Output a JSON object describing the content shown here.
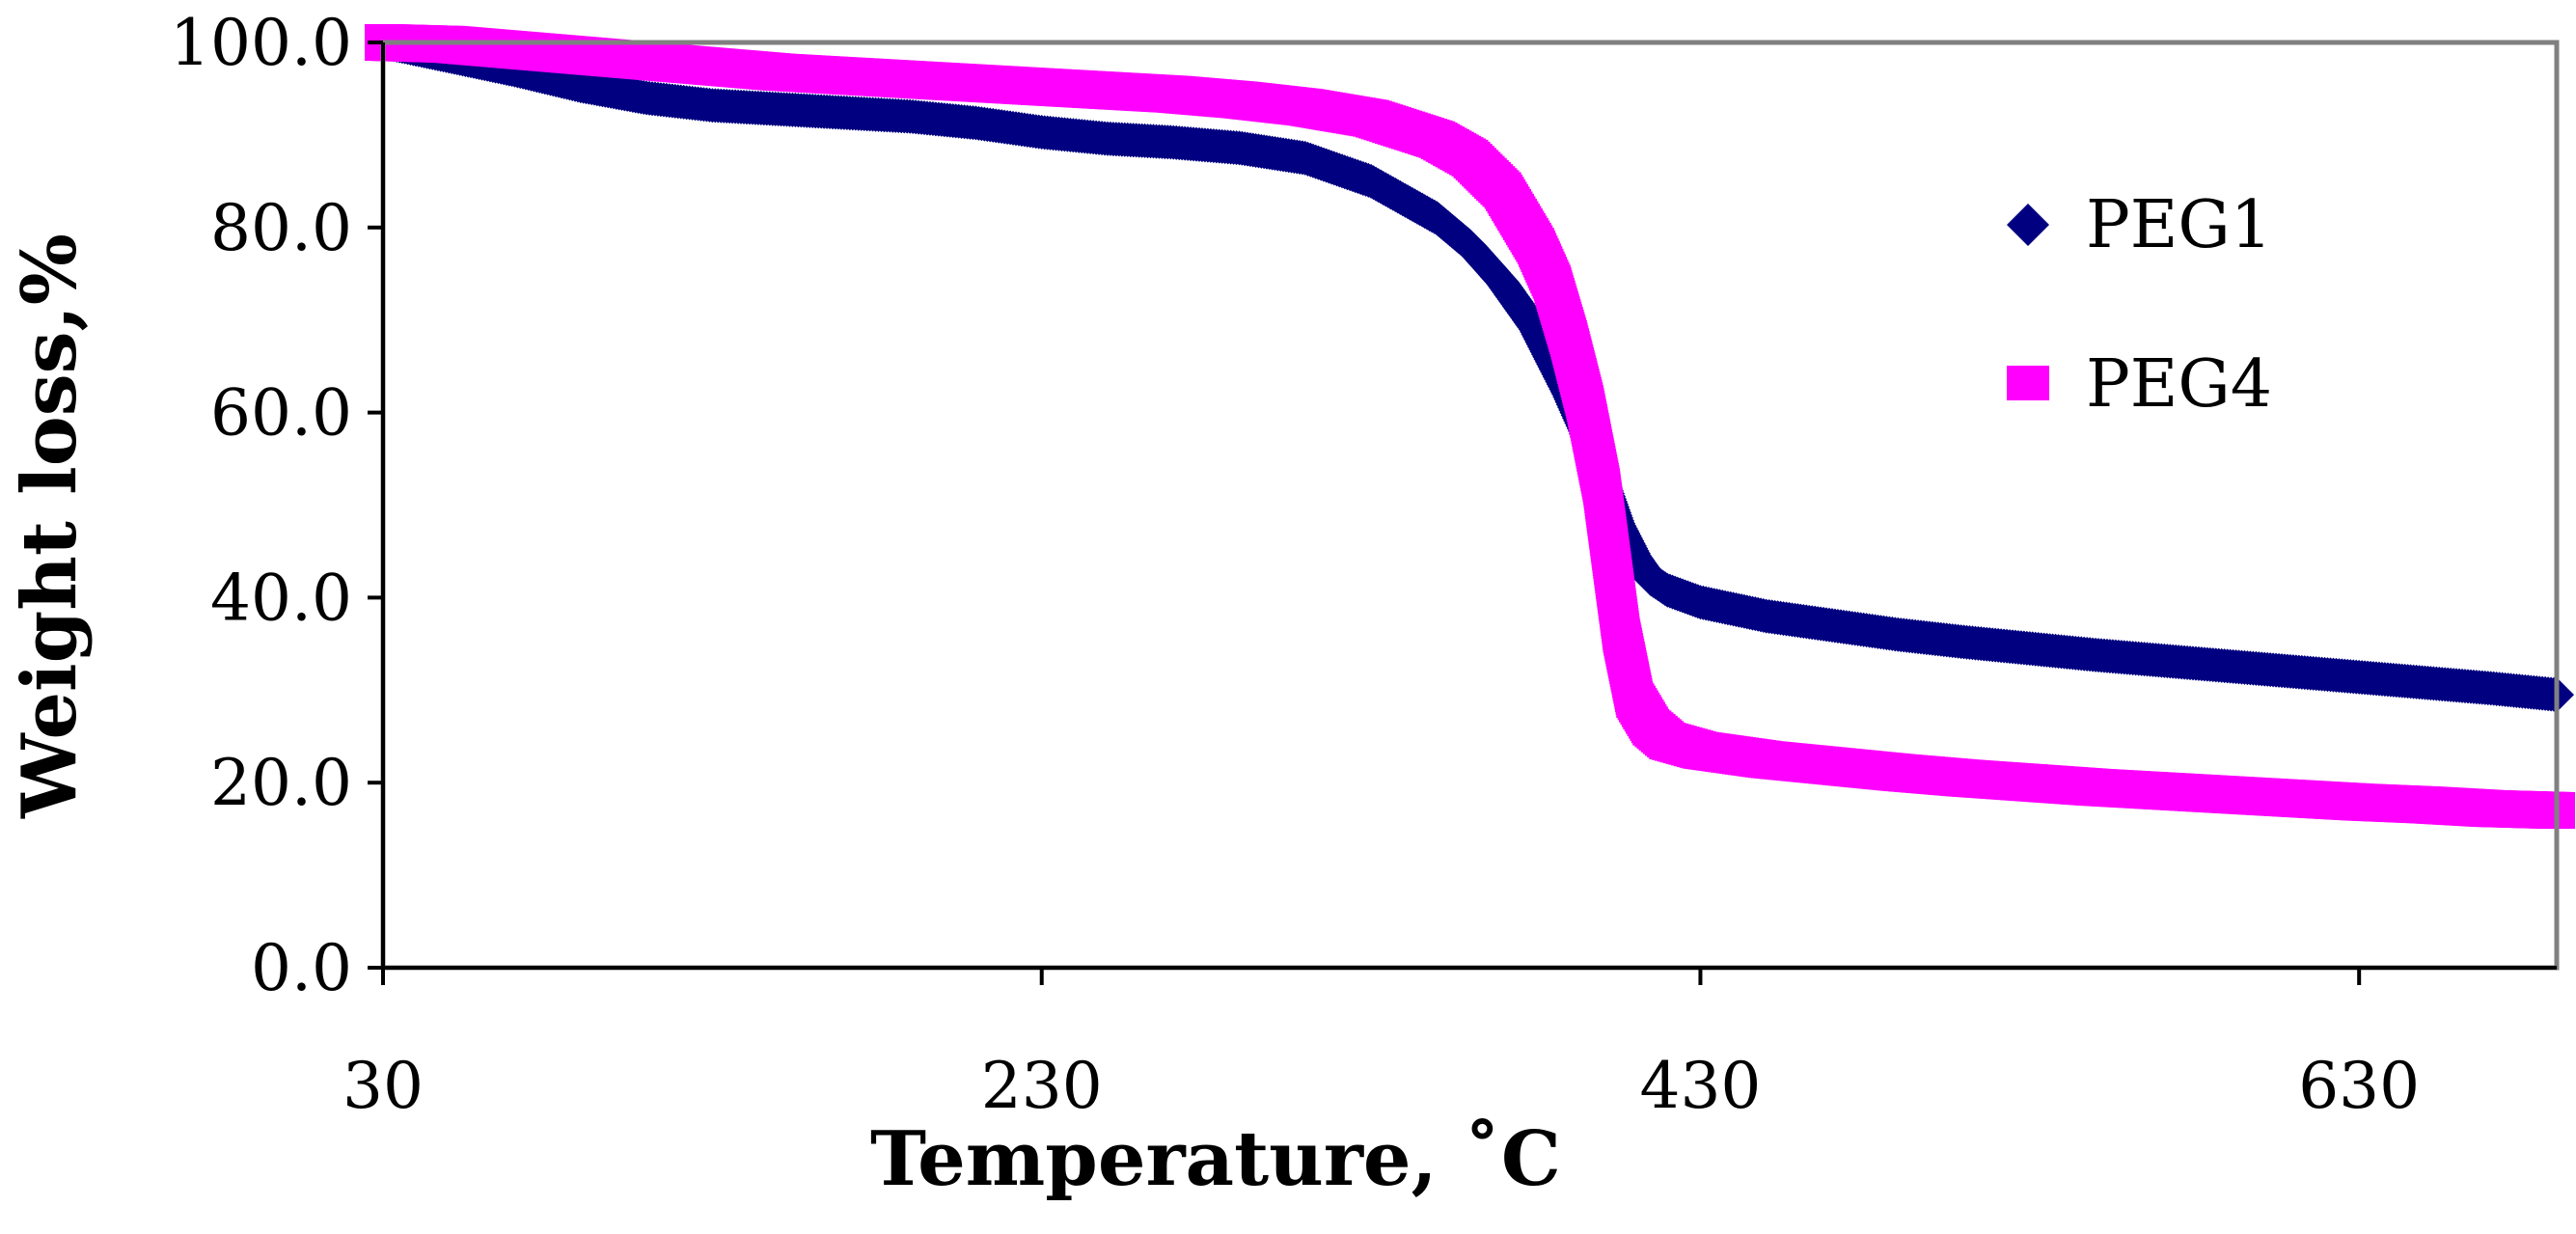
{
  "chart_data": {
    "type": "scatter",
    "title": "",
    "xlabel": "Temperature, ˚C",
    "ylabel": "Weight loss,%",
    "xlim": [
      30,
      690
    ],
    "ylim": [
      0,
      100
    ],
    "x_ticks": [
      30,
      230,
      430,
      630
    ],
    "x_tick_labels": [
      "30",
      "230",
      "430",
      "630"
    ],
    "y_ticks": [
      0,
      20,
      40,
      60,
      80,
      100
    ],
    "y_tick_labels": [
      "0.0",
      "20.0",
      "40.0",
      "60.0",
      "80.0",
      "100.0"
    ],
    "grid": false,
    "legend_position": "right",
    "series": [
      {
        "name": "PEG1",
        "marker": "diamond",
        "color": "#000080",
        "points": [
          [
            30,
            100
          ],
          [
            50,
            98.5
          ],
          [
            70,
            97
          ],
          [
            90,
            95.3
          ],
          [
            110,
            94
          ],
          [
            130,
            93.2
          ],
          [
            150,
            92.8
          ],
          [
            170,
            92.4
          ],
          [
            190,
            92
          ],
          [
            210,
            91.3
          ],
          [
            230,
            90.3
          ],
          [
            250,
            89.6
          ],
          [
            270,
            89.2
          ],
          [
            290,
            88.6
          ],
          [
            310,
            87.5
          ],
          [
            330,
            85
          ],
          [
            350,
            81
          ],
          [
            360,
            78
          ],
          [
            370,
            74
          ],
          [
            380,
            69
          ],
          [
            390,
            62
          ],
          [
            395,
            58
          ],
          [
            400,
            53
          ],
          [
            405,
            48
          ],
          [
            410,
            44.5
          ],
          [
            415,
            42
          ],
          [
            420,
            40.8
          ],
          [
            430,
            39.5
          ],
          [
            450,
            38
          ],
          [
            470,
            37
          ],
          [
            490,
            36
          ],
          [
            510,
            35.2
          ],
          [
            530,
            34.5
          ],
          [
            550,
            33.8
          ],
          [
            570,
            33.2
          ],
          [
            590,
            32.6
          ],
          [
            610,
            32
          ],
          [
            630,
            31.4
          ],
          [
            650,
            30.8
          ],
          [
            670,
            30.2
          ],
          [
            690,
            29.5
          ]
        ]
      },
      {
        "name": "PEG4",
        "marker": "square",
        "color": "#FF00FF",
        "points": [
          [
            30,
            100
          ],
          [
            50,
            99.8
          ],
          [
            70,
            99.2
          ],
          [
            90,
            98.6
          ],
          [
            110,
            98
          ],
          [
            130,
            97.4
          ],
          [
            150,
            96.8
          ],
          [
            170,
            96.4
          ],
          [
            190,
            96
          ],
          [
            210,
            95.6
          ],
          [
            230,
            95.2
          ],
          [
            250,
            94.8
          ],
          [
            270,
            94.4
          ],
          [
            290,
            93.8
          ],
          [
            310,
            93
          ],
          [
            330,
            91.8
          ],
          [
            350,
            89.5
          ],
          [
            360,
            87.5
          ],
          [
            370,
            84
          ],
          [
            380,
            78
          ],
          [
            385,
            74
          ],
          [
            390,
            68
          ],
          [
            395,
            61
          ],
          [
            400,
            52
          ],
          [
            403,
            44
          ],
          [
            406,
            36
          ],
          [
            410,
            29
          ],
          [
            415,
            26
          ],
          [
            420,
            24.5
          ],
          [
            430,
            23.5
          ],
          [
            450,
            22.5
          ],
          [
            470,
            21.8
          ],
          [
            490,
            21.1
          ],
          [
            510,
            20.5
          ],
          [
            530,
            20
          ],
          [
            550,
            19.5
          ],
          [
            570,
            19.1
          ],
          [
            590,
            18.7
          ],
          [
            610,
            18.3
          ],
          [
            630,
            17.9
          ],
          [
            650,
            17.6
          ],
          [
            670,
            17.2
          ],
          [
            690,
            17
          ]
        ]
      }
    ]
  }
}
